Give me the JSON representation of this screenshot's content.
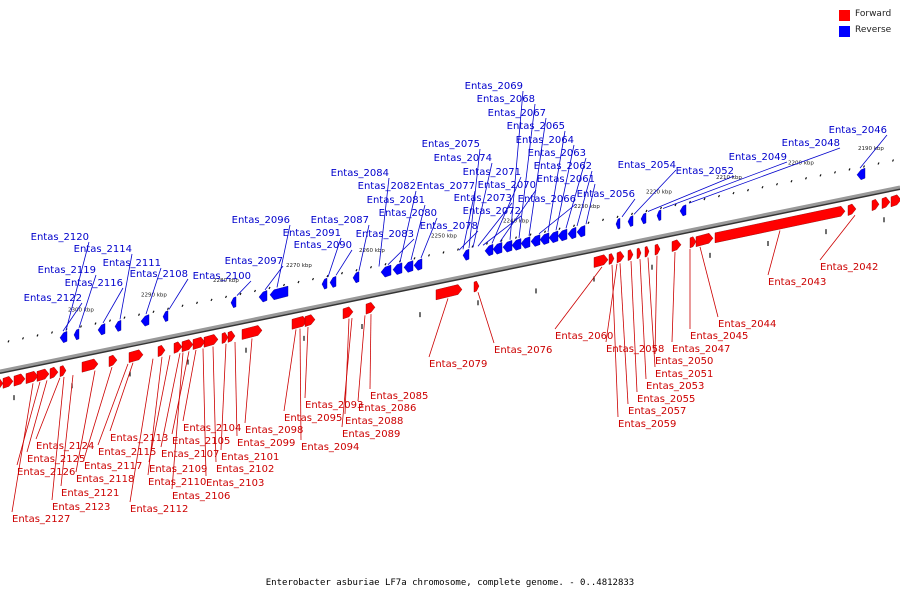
{
  "caption": "Enterobacter asburiae LF7a chromosome, complete genome. - 0..4812833",
  "legend": [
    {
      "label": "Forward",
      "color": "#ff0000"
    },
    {
      "label": "Reverse",
      "color": "#0000ff"
    }
  ],
  "colors": {
    "forward": "#ff0000",
    "reverse": "#0000ff",
    "forward_label": "#cc0000",
    "reverse_label": "#0000cc",
    "backbone": "#777777"
  },
  "scale_ticks": [
    "2190 kbp",
    "2200 kbp",
    "2210 kbp",
    "2220 kbp",
    "2230 kbp",
    "2240 kbp",
    "2250 kbp",
    "2260 kbp",
    "2270 kbp",
    "2280 kbp",
    "2290 kbp",
    "2300 kbp"
  ],
  "forward_genes": [
    "Entas_2042",
    "Entas_2043",
    "Entas_2044",
    "Entas_2045",
    "Entas_2047",
    "Entas_2050",
    "Entas_2051",
    "Entas_2053",
    "Entas_2055",
    "Entas_2057",
    "Entas_2059",
    "Entas_2058",
    "Entas_2060",
    "Entas_2076",
    "Entas_2079",
    "Entas_2085",
    "Entas_2086",
    "Entas_2088",
    "Entas_2089",
    "Entas_2093",
    "Entas_2094",
    "Entas_2095",
    "Entas_2098",
    "Entas_2099",
    "Entas_2101",
    "Entas_2102",
    "Entas_2103",
    "Entas_2104",
    "Entas_2105",
    "Entas_2106",
    "Entas_2107",
    "Entas_2109",
    "Entas_2110",
    "Entas_2112",
    "Entas_2113",
    "Entas_2115",
    "Entas_2117",
    "Entas_2118",
    "Entas_2121",
    "Entas_2123",
    "Entas_2124",
    "Entas_2125",
    "Entas_2126",
    "Entas_2127"
  ],
  "reverse_genes": [
    "Entas_2046",
    "Entas_2048",
    "Entas_2049",
    "Entas_2052",
    "Entas_2054",
    "Entas_2056",
    "Entas_2061",
    "Entas_2062",
    "Entas_2063",
    "Entas_2064",
    "Entas_2065",
    "Entas_2066",
    "Entas_2067",
    "Entas_2068",
    "Entas_2069",
    "Entas_2070",
    "Entas_2071",
    "Entas_2072",
    "Entas_2073",
    "Entas_2074",
    "Entas_2075",
    "Entas_2077",
    "Entas_2078",
    "Entas_2080",
    "Entas_2081",
    "Entas_2082",
    "Entas_2083",
    "Entas_2084",
    "Entas_2087",
    "Entas_2090",
    "Entas_2091",
    "Entas_2096",
    "Entas_2097",
    "Entas_2100",
    "Entas_2108",
    "Entas_2111",
    "Entas_2114",
    "Entas_2116",
    "Entas_2119",
    "Entas_2120",
    "Entas_2122"
  ]
}
